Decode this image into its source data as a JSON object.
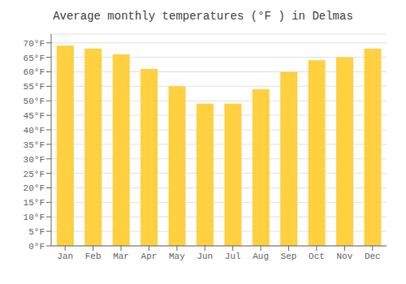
{
  "chart_data": {
    "type": "bar",
    "title": "Average monthly temperatures (°F ) in Delmas",
    "categories": [
      "Jan",
      "Feb",
      "Mar",
      "Apr",
      "May",
      "Jun",
      "Jul",
      "Aug",
      "Sep",
      "Oct",
      "Nov",
      "Dec"
    ],
    "values": [
      69,
      68,
      66,
      61,
      55,
      49,
      49,
      54,
      60,
      64,
      65,
      68
    ],
    "color": "#FFD040",
    "ylim": [
      0,
      73
    ],
    "yticks": [
      {
        "value": 0,
        "label": "0°F"
      },
      {
        "value": 5,
        "label": "5°F"
      },
      {
        "value": 10,
        "label": "10°F"
      },
      {
        "value": 15,
        "label": "15°F"
      },
      {
        "value": 20,
        "label": "20°F"
      },
      {
        "value": 25,
        "label": "25°F"
      },
      {
        "value": 30,
        "label": "30°F"
      },
      {
        "value": 35,
        "label": "35°F"
      },
      {
        "value": 40,
        "label": "40°F"
      },
      {
        "value": 45,
        "label": "45°F"
      },
      {
        "value": 50,
        "label": "50°F"
      },
      {
        "value": 55,
        "label": "55°F"
      },
      {
        "value": 60,
        "label": "60°F"
      },
      {
        "value": 65,
        "label": "65°F"
      },
      {
        "value": 70,
        "label": "70°F"
      }
    ],
    "grid": true
  }
}
